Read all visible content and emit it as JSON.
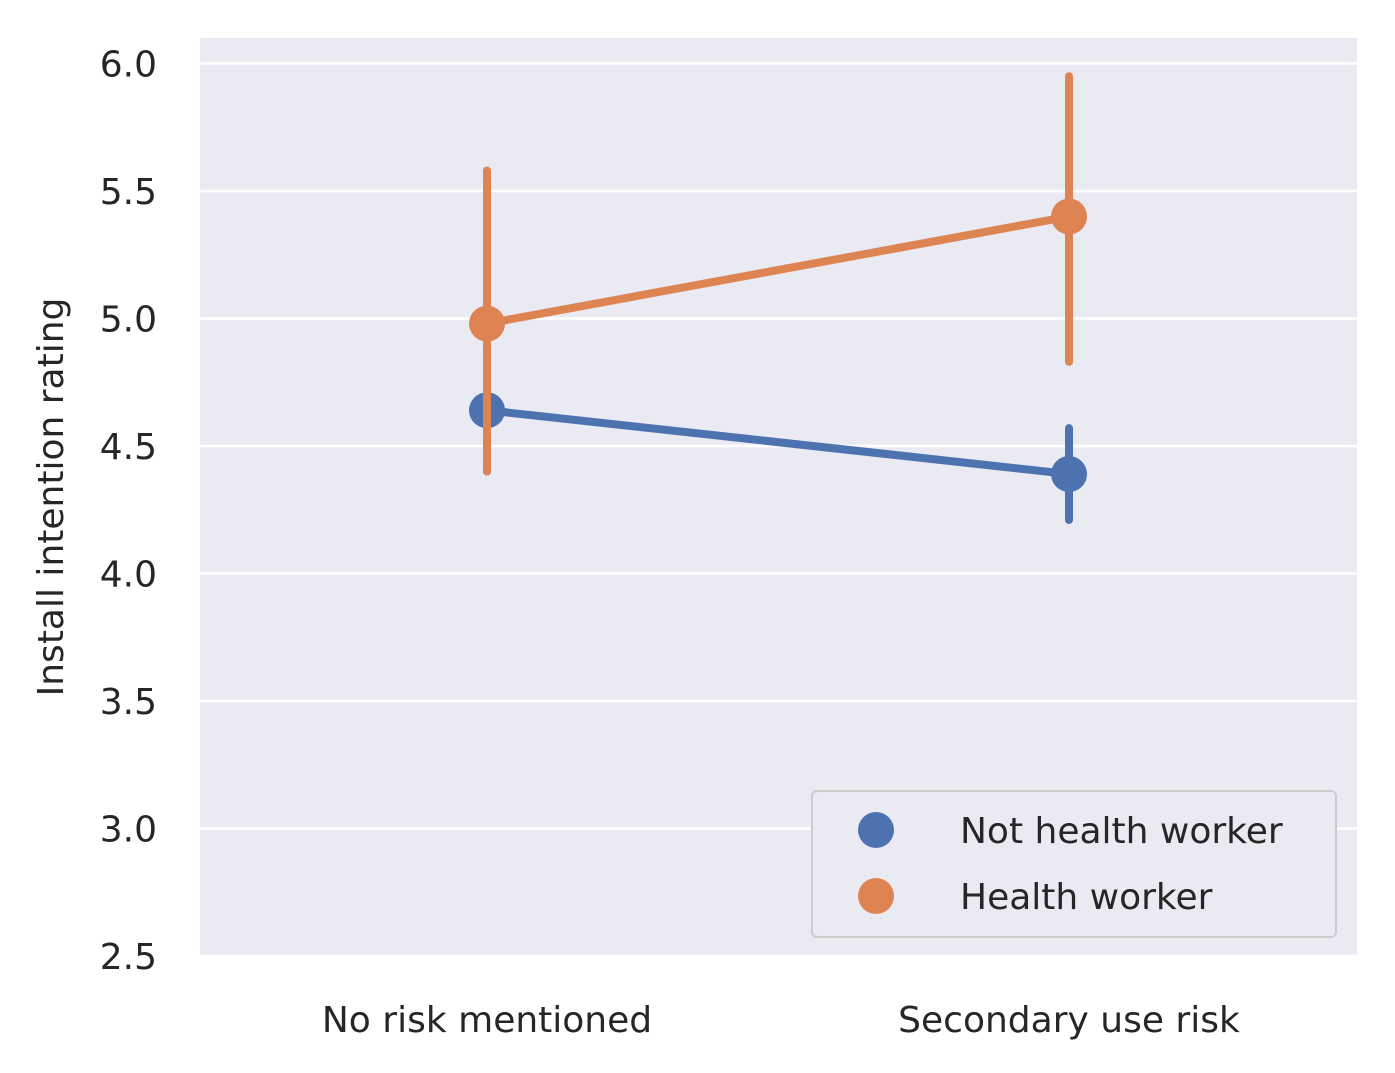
{
  "chart_data": {
    "type": "line",
    "title": "",
    "xlabel": "",
    "ylabel": "Install intention rating",
    "ylim": [
      2.5,
      6.1
    ],
    "yticks": [
      "2.5",
      "3.0",
      "3.5",
      "4.0",
      "4.5",
      "5.0",
      "5.5",
      "6.0"
    ],
    "categories": [
      "No risk mentioned",
      "Secondary use risk"
    ],
    "grid": true,
    "legend_position": "lower-right",
    "series": [
      {
        "name": "Not health worker",
        "color": "#4c72b0",
        "values": [
          4.64,
          4.39
        ],
        "ci_low": [
          4.4,
          4.21
        ],
        "ci_high": [
          4.88,
          4.57
        ]
      },
      {
        "name": "Health worker",
        "color": "#dd8452",
        "values": [
          4.98,
          5.4
        ],
        "ci_low": [
          4.4,
          4.83
        ],
        "ci_high": [
          5.58,
          5.95
        ]
      }
    ]
  }
}
